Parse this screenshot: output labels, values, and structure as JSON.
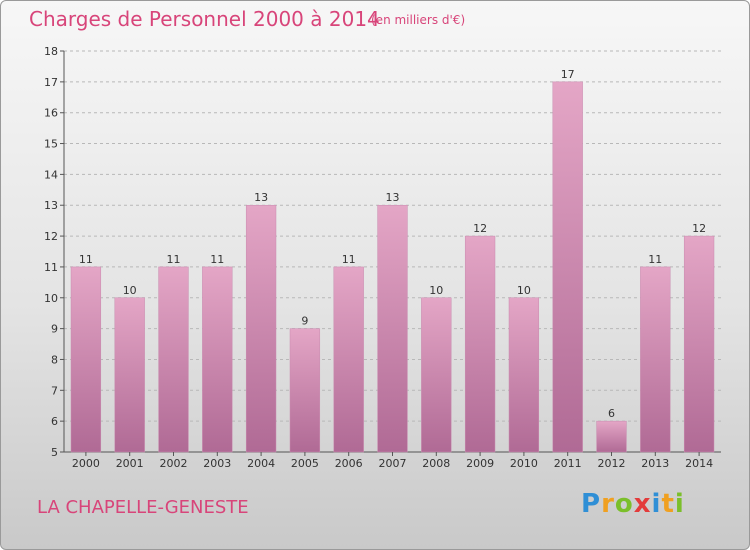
{
  "header": {
    "title": "Charges de Personnel 2000 à 2014",
    "subtitle": "(en milliers d'€)"
  },
  "footer": {
    "commune": "LA CHAPELLE-GENESTE",
    "logo_text": "Proxiti"
  },
  "colors": {
    "accent": "#d8457a",
    "bar_top": "#e4a6c6",
    "bar_bottom": "#b06a95"
  },
  "chart_data": {
    "type": "bar",
    "categories": [
      "2000",
      "2001",
      "2002",
      "2003",
      "2004",
      "2005",
      "2006",
      "2007",
      "2008",
      "2009",
      "2010",
      "2011",
      "2012",
      "2013",
      "2014"
    ],
    "values": [
      11,
      10,
      11,
      11,
      13,
      9,
      11,
      13,
      10,
      12,
      10,
      17,
      6,
      11,
      12
    ],
    "title": "Charges de Personnel 2000 à 2014",
    "subtitle": "(en milliers d'€)",
    "xlabel": "",
    "ylabel": "",
    "ylim": [
      5,
      18
    ],
    "yticks": [
      5,
      6,
      7,
      8,
      9,
      10,
      11,
      12,
      13,
      14,
      15,
      16,
      17,
      18
    ],
    "grid": true,
    "legend": "none"
  }
}
